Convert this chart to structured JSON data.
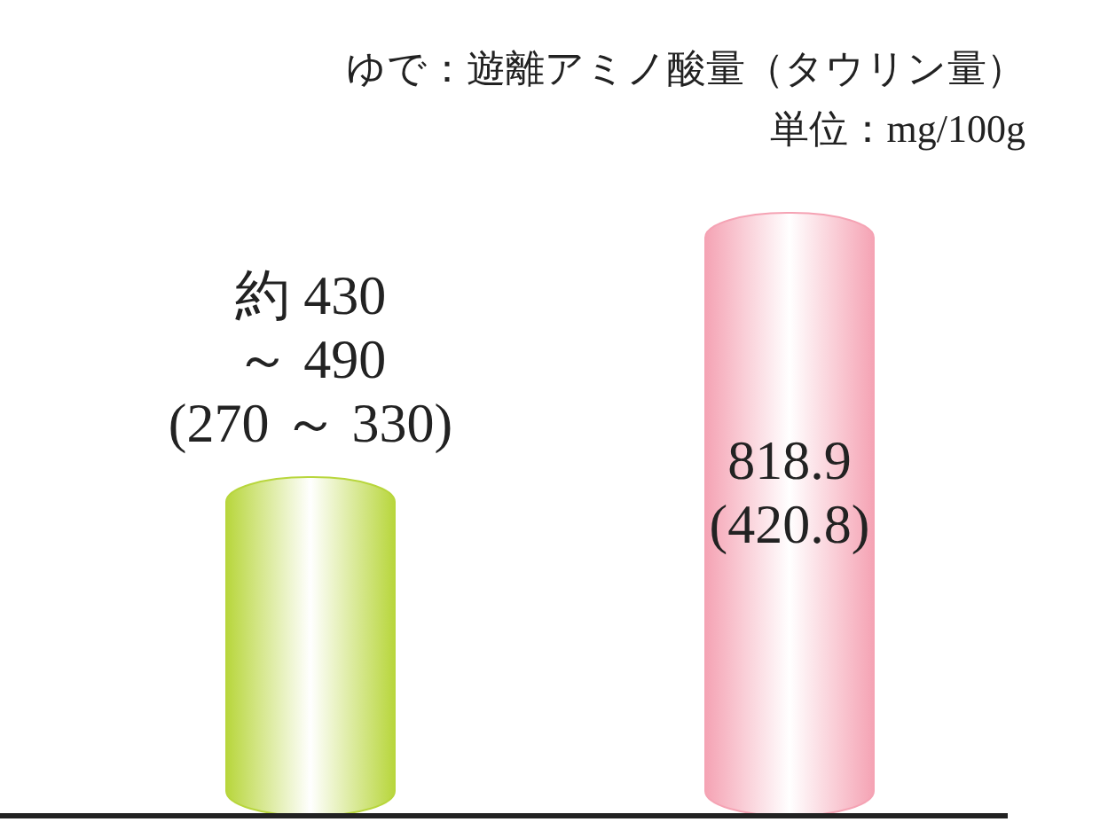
{
  "chart_data": {
    "type": "bar",
    "title": "ゆで：遊離アミノ酸量（タウリン量）",
    "subtitle": "単位：mg/100g",
    "categories": [
      null,
      null
    ],
    "values": [
      460,
      818.9
    ],
    "colors": [
      "#b8d63c",
      "#f5a3b4"
    ],
    "value_labels": [
      "約 430\n～ 490\n(270 ～ 330)",
      "818.9\n(420.8)"
    ]
  }
}
